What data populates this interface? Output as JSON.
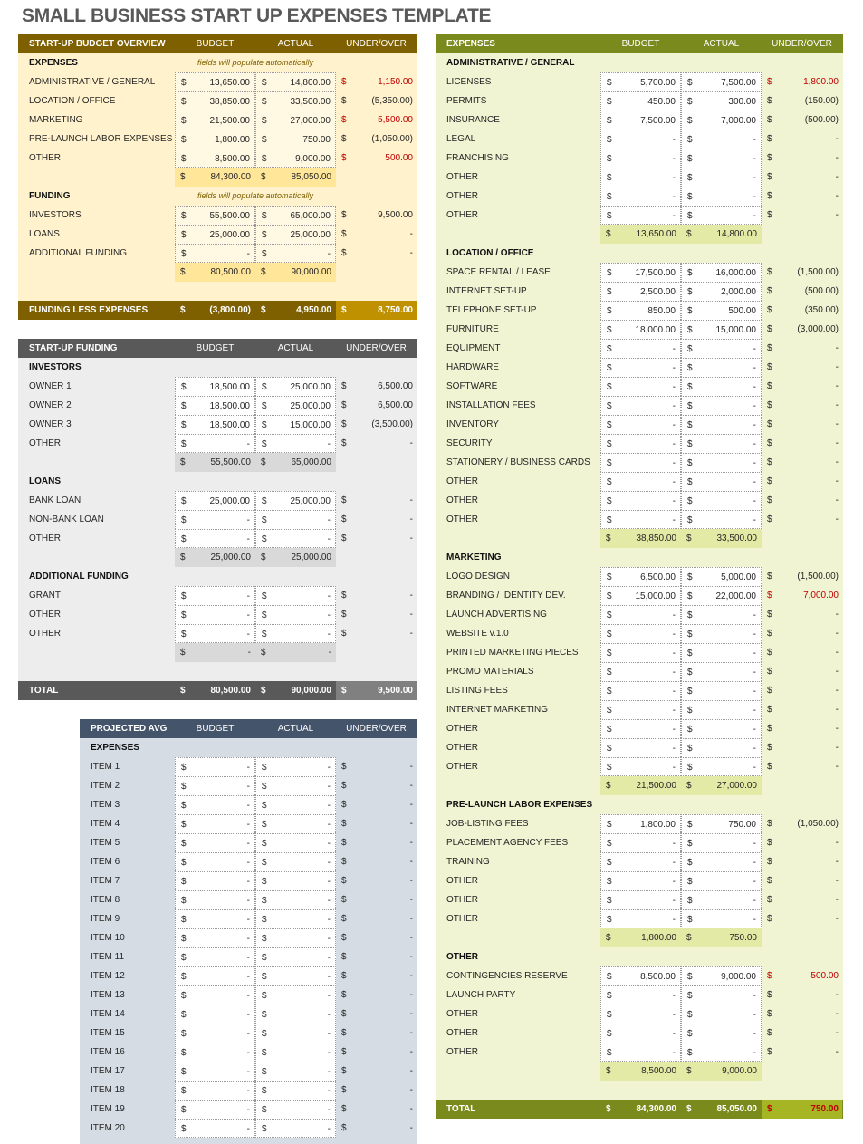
{
  "title": "SMALL BUSINESS START UP EXPENSES TEMPLATE",
  "currency_symbol": "$",
  "colors": {
    "over_budget": "#c00000",
    "overview_header": "#7f6000",
    "funding_header": "#595959",
    "projected_header": "#44546a",
    "expenses_header": "#7b8a1c"
  },
  "overview": {
    "header": [
      "START-UP BUDGET OVERVIEW",
      "BUDGET",
      "ACTUAL",
      "UNDER/OVER"
    ],
    "rows": [
      {
        "t": "section",
        "label": "EXPENSES",
        "note": "fields will populate automatically"
      },
      {
        "t": "item",
        "label": "ADMINISTRATIVE / GENERAL",
        "budget": "13,650.00",
        "actual": "14,800.00",
        "diff": "1,150.00",
        "over": true
      },
      {
        "t": "item",
        "label": "LOCATION / OFFICE",
        "budget": "38,850.00",
        "actual": "33,500.00",
        "diff": "(5,350.00)"
      },
      {
        "t": "item",
        "label": "MARKETING",
        "budget": "21,500.00",
        "actual": "27,000.00",
        "diff": "5,500.00",
        "over": true
      },
      {
        "t": "item",
        "label": "PRE-LAUNCH LABOR EXPENSES",
        "budget": "1,800.00",
        "actual": "750.00",
        "diff": "(1,050.00)"
      },
      {
        "t": "item",
        "label": "OTHER",
        "budget": "8,500.00",
        "actual": "9,000.00",
        "diff": "500.00",
        "over": true
      },
      {
        "t": "total",
        "budget": "84,300.00",
        "actual": "85,050.00"
      },
      {
        "t": "section",
        "label": "FUNDING",
        "note": "fields will populate automatically"
      },
      {
        "t": "item",
        "label": "INVESTORS",
        "budget": "55,500.00",
        "actual": "65,000.00",
        "diff": "9,500.00"
      },
      {
        "t": "item",
        "label": "LOANS",
        "budget": "25,000.00",
        "actual": "25,000.00",
        "diff": "-"
      },
      {
        "t": "item",
        "label": "ADDITIONAL FUNDING",
        "budget": "-",
        "actual": "-",
        "diff": "-"
      },
      {
        "t": "total",
        "budget": "80,500.00",
        "actual": "90,000.00"
      },
      {
        "t": "blank"
      },
      {
        "t": "bar",
        "label": "FUNDING LESS EXPENSES",
        "budget": "(3,800.00)",
        "actual": "4,950.00",
        "diff": "8,750.00"
      }
    ]
  },
  "funding": {
    "header": [
      "START-UP FUNDING",
      "BUDGET",
      "ACTUAL",
      "UNDER/OVER"
    ],
    "rows": [
      {
        "t": "section",
        "label": "INVESTORS"
      },
      {
        "t": "item",
        "label": "OWNER 1",
        "budget": "18,500.00",
        "actual": "25,000.00",
        "diff": "6,500.00"
      },
      {
        "t": "item",
        "label": "OWNER 2",
        "budget": "18,500.00",
        "actual": "25,000.00",
        "diff": "6,500.00"
      },
      {
        "t": "item",
        "label": "OWNER 3",
        "budget": "18,500.00",
        "actual": "15,000.00",
        "diff": "(3,500.00)"
      },
      {
        "t": "item",
        "label": "OTHER",
        "budget": "-",
        "actual": "-",
        "diff": "-"
      },
      {
        "t": "total",
        "budget": "55,500.00",
        "actual": "65,000.00"
      },
      {
        "t": "section",
        "label": "LOANS"
      },
      {
        "t": "item",
        "label": "BANK LOAN",
        "budget": "25,000.00",
        "actual": "25,000.00",
        "diff": "-"
      },
      {
        "t": "item",
        "label": "NON-BANK LOAN",
        "budget": "-",
        "actual": "-",
        "diff": "-"
      },
      {
        "t": "item",
        "label": "OTHER",
        "budget": "-",
        "actual": "-",
        "diff": "-"
      },
      {
        "t": "total",
        "budget": "25,000.00",
        "actual": "25,000.00"
      },
      {
        "t": "section",
        "label": "ADDITIONAL FUNDING"
      },
      {
        "t": "item",
        "label": "GRANT",
        "budget": "-",
        "actual": "-",
        "diff": "-"
      },
      {
        "t": "item",
        "label": "OTHER",
        "budget": "-",
        "actual": "-",
        "diff": "-"
      },
      {
        "t": "item",
        "label": "OTHER",
        "budget": "-",
        "actual": "-",
        "diff": "-"
      },
      {
        "t": "total",
        "budget": "-",
        "actual": "-"
      },
      {
        "t": "blank"
      },
      {
        "t": "bar",
        "label": "TOTAL",
        "budget": "80,500.00",
        "actual": "90,000.00",
        "diff": "9,500.00"
      }
    ]
  },
  "projected": {
    "header": [
      "PROJECTED AVG",
      "BUDGET",
      "ACTUAL",
      "UNDER/OVER"
    ],
    "rows": [
      {
        "t": "section",
        "label": "EXPENSES"
      },
      {
        "t": "item",
        "label": "ITEM 1",
        "budget": "-",
        "actual": "-",
        "diff": "-"
      },
      {
        "t": "item",
        "label": "ITEM 2",
        "budget": "-",
        "actual": "-",
        "diff": "-"
      },
      {
        "t": "item",
        "label": "ITEM 3",
        "budget": "-",
        "actual": "-",
        "diff": "-"
      },
      {
        "t": "item",
        "label": "ITEM 4",
        "budget": "-",
        "actual": "-",
        "diff": "-"
      },
      {
        "t": "item",
        "label": "ITEM 5",
        "budget": "-",
        "actual": "-",
        "diff": "-"
      },
      {
        "t": "item",
        "label": "ITEM 6",
        "budget": "-",
        "actual": "-",
        "diff": "-"
      },
      {
        "t": "item",
        "label": "ITEM 7",
        "budget": "-",
        "actual": "-",
        "diff": "-"
      },
      {
        "t": "item",
        "label": "ITEM 8",
        "budget": "-",
        "actual": "-",
        "diff": "-"
      },
      {
        "t": "item",
        "label": "ITEM 9",
        "budget": "-",
        "actual": "-",
        "diff": "-"
      },
      {
        "t": "item",
        "label": "ITEM 10",
        "budget": "-",
        "actual": "-",
        "diff": "-"
      },
      {
        "t": "item",
        "label": "ITEM 11",
        "budget": "-",
        "actual": "-",
        "diff": "-"
      },
      {
        "t": "item",
        "label": "ITEM 12",
        "budget": "-",
        "actual": "-",
        "diff": "-"
      },
      {
        "t": "item",
        "label": "ITEM 13",
        "budget": "-",
        "actual": "-",
        "diff": "-"
      },
      {
        "t": "item",
        "label": "ITEM 14",
        "budget": "-",
        "actual": "-",
        "diff": "-"
      },
      {
        "t": "item",
        "label": "ITEM 15",
        "budget": "-",
        "actual": "-",
        "diff": "-"
      },
      {
        "t": "item",
        "label": "ITEM 16",
        "budget": "-",
        "actual": "-",
        "diff": "-"
      },
      {
        "t": "item",
        "label": "ITEM 17",
        "budget": "-",
        "actual": "-",
        "diff": "-"
      },
      {
        "t": "item",
        "label": "ITEM 18",
        "budget": "-",
        "actual": "-",
        "diff": "-"
      },
      {
        "t": "item",
        "label": "ITEM 19",
        "budget": "-",
        "actual": "-",
        "diff": "-"
      },
      {
        "t": "item",
        "label": "ITEM 20",
        "budget": "-",
        "actual": "-",
        "diff": "-"
      }
    ]
  },
  "expenses": {
    "header": [
      "EXPENSES",
      "BUDGET",
      "ACTUAL",
      "UNDER/OVER"
    ],
    "rows": [
      {
        "t": "section",
        "label": "ADMINISTRATIVE / GENERAL"
      },
      {
        "t": "item",
        "label": "LICENSES",
        "budget": "5,700.00",
        "actual": "7,500.00",
        "diff": "1,800.00",
        "over": true
      },
      {
        "t": "item",
        "label": "PERMITS",
        "budget": "450.00",
        "actual": "300.00",
        "diff": "(150.00)"
      },
      {
        "t": "item",
        "label": "INSURANCE",
        "budget": "7,500.00",
        "actual": "7,000.00",
        "diff": "(500.00)"
      },
      {
        "t": "item",
        "label": "LEGAL",
        "budget": "-",
        "actual": "-",
        "diff": "-"
      },
      {
        "t": "item",
        "label": "FRANCHISING",
        "budget": "-",
        "actual": "-",
        "diff": "-"
      },
      {
        "t": "item",
        "label": "OTHER",
        "budget": "-",
        "actual": "-",
        "diff": "-"
      },
      {
        "t": "item",
        "label": "OTHER",
        "budget": "-",
        "actual": "-",
        "diff": "-"
      },
      {
        "t": "item",
        "label": "OTHER",
        "budget": "-",
        "actual": "-",
        "diff": "-"
      },
      {
        "t": "total",
        "budget": "13,650.00",
        "actual": "14,800.00"
      },
      {
        "t": "section",
        "label": "LOCATION / OFFICE"
      },
      {
        "t": "item",
        "label": "SPACE RENTAL / LEASE",
        "budget": "17,500.00",
        "actual": "16,000.00",
        "diff": "(1,500.00)"
      },
      {
        "t": "item",
        "label": "INTERNET SET-UP",
        "budget": "2,500.00",
        "actual": "2,000.00",
        "diff": "(500.00)"
      },
      {
        "t": "item",
        "label": "TELEPHONE SET-UP",
        "budget": "850.00",
        "actual": "500.00",
        "diff": "(350.00)"
      },
      {
        "t": "item",
        "label": "FURNITURE",
        "budget": "18,000.00",
        "actual": "15,000.00",
        "diff": "(3,000.00)"
      },
      {
        "t": "item",
        "label": "EQUIPMENT",
        "budget": "-",
        "actual": "-",
        "diff": "-"
      },
      {
        "t": "item",
        "label": "HARDWARE",
        "budget": "-",
        "actual": "-",
        "diff": "-"
      },
      {
        "t": "item",
        "label": "SOFTWARE",
        "budget": "-",
        "actual": "-",
        "diff": "-"
      },
      {
        "t": "item",
        "label": "INSTALLATION FEES",
        "budget": "-",
        "actual": "-",
        "diff": "-"
      },
      {
        "t": "item",
        "label": "INVENTORY",
        "budget": "-",
        "actual": "-",
        "diff": "-"
      },
      {
        "t": "item",
        "label": "SECURITY",
        "budget": "-",
        "actual": "-",
        "diff": "-"
      },
      {
        "t": "item",
        "label": "STATIONERY / BUSINESS CARDS",
        "budget": "-",
        "actual": "-",
        "diff": "-"
      },
      {
        "t": "item",
        "label": "OTHER",
        "budget": "-",
        "actual": "-",
        "diff": "-"
      },
      {
        "t": "item",
        "label": "OTHER",
        "budget": "-",
        "actual": "-",
        "diff": "-"
      },
      {
        "t": "item",
        "label": "OTHER",
        "budget": "-",
        "actual": "-",
        "diff": "-"
      },
      {
        "t": "total",
        "budget": "38,850.00",
        "actual": "33,500.00"
      },
      {
        "t": "section",
        "label": "MARKETING"
      },
      {
        "t": "item",
        "label": "LOGO DESIGN",
        "budget": "6,500.00",
        "actual": "5,000.00",
        "diff": "(1,500.00)"
      },
      {
        "t": "item",
        "label": "BRANDING / IDENTITY DEV.",
        "budget": "15,000.00",
        "actual": "22,000.00",
        "diff": "7,000.00",
        "over": true
      },
      {
        "t": "item",
        "label": "LAUNCH ADVERTISING",
        "budget": "-",
        "actual": "-",
        "diff": "-"
      },
      {
        "t": "item",
        "label": "WEBSITE v.1.0",
        "budget": "-",
        "actual": "-",
        "diff": "-"
      },
      {
        "t": "item",
        "label": "PRINTED MARKETING PIECES",
        "budget": "-",
        "actual": "-",
        "diff": "-"
      },
      {
        "t": "item",
        "label": "PROMO MATERIALS",
        "budget": "-",
        "actual": "-",
        "diff": "-"
      },
      {
        "t": "item",
        "label": "LISTING FEES",
        "budget": "-",
        "actual": "-",
        "diff": "-"
      },
      {
        "t": "item",
        "label": "INTERNET MARKETING",
        "budget": "-",
        "actual": "-",
        "diff": "-"
      },
      {
        "t": "item",
        "label": "OTHER",
        "budget": "-",
        "actual": "-",
        "diff": "-"
      },
      {
        "t": "item",
        "label": "OTHER",
        "budget": "-",
        "actual": "-",
        "diff": "-"
      },
      {
        "t": "item",
        "label": "OTHER",
        "budget": "-",
        "actual": "-",
        "diff": "-"
      },
      {
        "t": "total",
        "budget": "21,500.00",
        "actual": "27,000.00"
      },
      {
        "t": "section",
        "label": "PRE-LAUNCH LABOR EXPENSES"
      },
      {
        "t": "item",
        "label": "JOB-LISTING FEES",
        "budget": "1,800.00",
        "actual": "750.00",
        "diff": "(1,050.00)"
      },
      {
        "t": "item",
        "label": "PLACEMENT AGENCY FEES",
        "budget": "-",
        "actual": "-",
        "diff": "-"
      },
      {
        "t": "item",
        "label": "TRAINING",
        "budget": "-",
        "actual": "-",
        "diff": "-"
      },
      {
        "t": "item",
        "label": "OTHER",
        "budget": "-",
        "actual": "-",
        "diff": "-"
      },
      {
        "t": "item",
        "label": "OTHER",
        "budget": "-",
        "actual": "-",
        "diff": "-"
      },
      {
        "t": "item",
        "label": "OTHER",
        "budget": "-",
        "actual": "-",
        "diff": "-"
      },
      {
        "t": "total",
        "budget": "1,800.00",
        "actual": "750.00"
      },
      {
        "t": "section",
        "label": "OTHER"
      },
      {
        "t": "item",
        "label": "CONTINGENCIES RESERVE",
        "budget": "8,500.00",
        "actual": "9,000.00",
        "diff": "500.00",
        "over": true
      },
      {
        "t": "item",
        "label": "LAUNCH PARTY",
        "budget": "-",
        "actual": "-",
        "diff": "-"
      },
      {
        "t": "item",
        "label": "OTHER",
        "budget": "-",
        "actual": "-",
        "diff": "-"
      },
      {
        "t": "item",
        "label": "OTHER",
        "budget": "-",
        "actual": "-",
        "diff": "-"
      },
      {
        "t": "item",
        "label": "OTHER",
        "budget": "-",
        "actual": "-",
        "diff": "-"
      },
      {
        "t": "total",
        "budget": "8,500.00",
        "actual": "9,000.00"
      },
      {
        "t": "blank"
      },
      {
        "t": "bar",
        "label": "TOTAL",
        "budget": "84,300.00",
        "actual": "85,050.00",
        "diff": "750.00",
        "over": true
      }
    ]
  }
}
